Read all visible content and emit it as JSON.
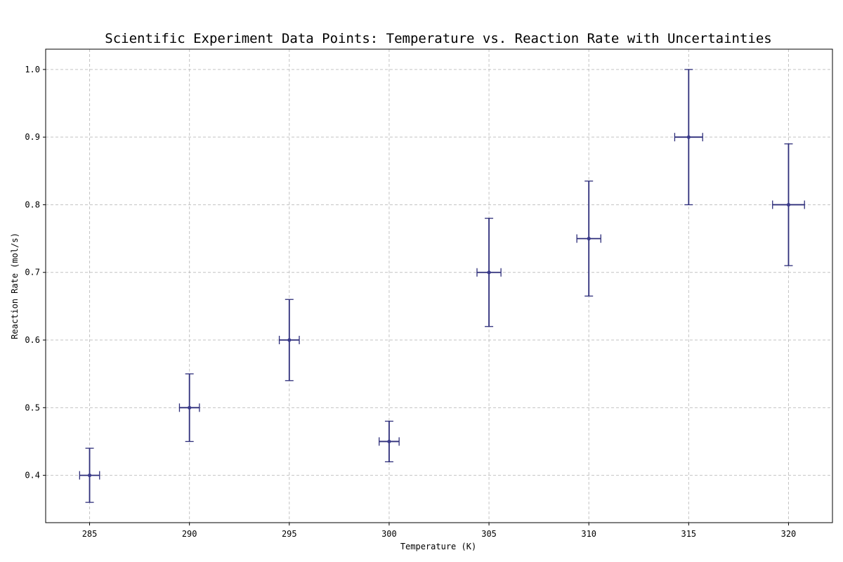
{
  "chart_data": {
    "type": "scatter",
    "title": "Scientific Experiment Data Points: Temperature vs. Reaction Rate with Uncertainties",
    "xlabel": "Temperature (K)",
    "ylabel": "Reaction Rate (mol/s)",
    "xlim": [
      282.8,
      322.2
    ],
    "ylim": [
      0.33,
      1.03
    ],
    "xticks": [
      285,
      290,
      295,
      300,
      305,
      310,
      315,
      320
    ],
    "yticks": [
      0.4,
      0.5,
      0.6,
      0.7,
      0.8,
      0.9,
      1.0
    ],
    "xtick_labels": [
      "285",
      "290",
      "295",
      "300",
      "305",
      "310",
      "315",
      "320"
    ],
    "ytick_labels": [
      "0.4",
      "0.5",
      "0.6",
      "0.7",
      "0.8",
      "0.9",
      "1.0"
    ],
    "grid": true,
    "series": [
      {
        "x": [
          285,
          290,
          295,
          300,
          305,
          310,
          315,
          320
        ],
        "y": [
          0.4,
          0.5,
          0.6,
          0.45,
          0.7,
          0.75,
          0.9,
          0.8
        ],
        "x_err": [
          0.5,
          0.5,
          0.5,
          0.5,
          0.6,
          0.6,
          0.7,
          0.8
        ],
        "y_err": [
          0.04,
          0.05,
          0.06,
          0.03,
          0.08,
          0.085,
          0.1,
          0.09
        ]
      }
    ],
    "colors": {
      "marker": "#3a3a8c",
      "errorbar": "#2e2e7a"
    }
  }
}
